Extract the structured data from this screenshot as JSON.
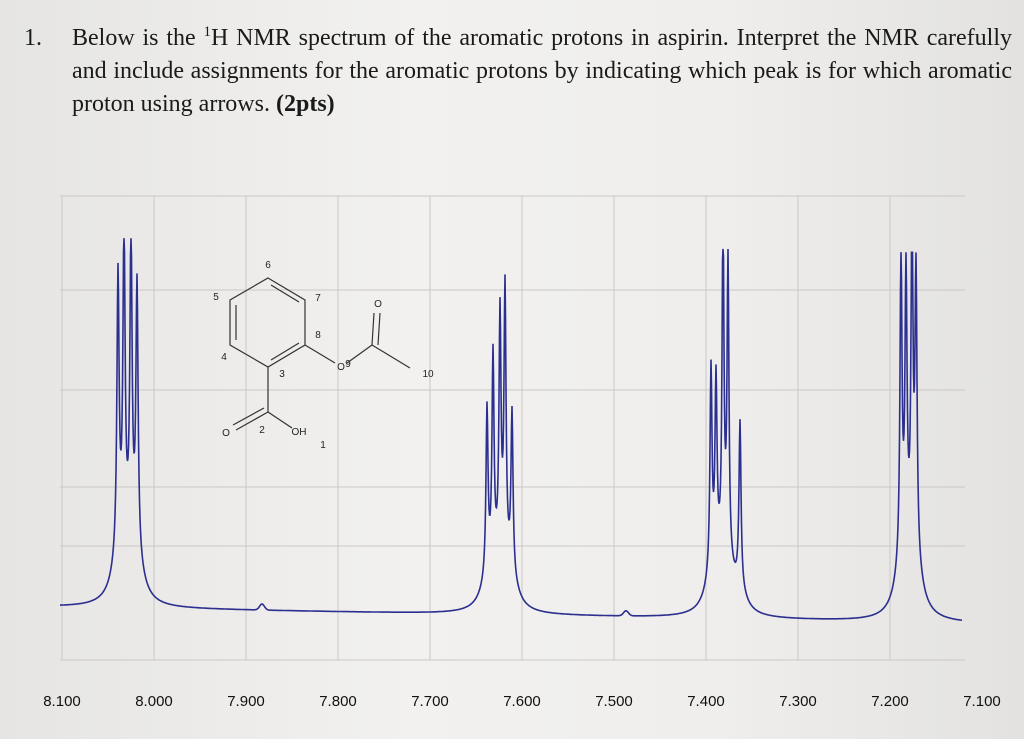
{
  "question": {
    "number": "1.",
    "text_before": "Below is the ",
    "superscript": "1",
    "text_after": "H NMR spectrum of the aromatic protons in aspirin. Interpret the NMR carefully and include assignments for the aromatic protons by indicating which peak is for which aromatic proton using arrows.",
    "points": "(2pts)"
  },
  "spectrum": {
    "xlim": [
      8.1,
      7.1
    ],
    "xticks": [
      {
        "value": 8.1,
        "label": "8.100"
      },
      {
        "value": 8.0,
        "label": "8.000"
      },
      {
        "value": 7.9,
        "label": "7.900"
      },
      {
        "value": 7.8,
        "label": "7.800"
      },
      {
        "value": 7.7,
        "label": "7.700"
      },
      {
        "value": 7.6,
        "label": "7.600"
      },
      {
        "value": 7.5,
        "label": "7.500"
      },
      {
        "value": 7.4,
        "label": "7.400"
      },
      {
        "value": 7.3,
        "label": "7.300"
      },
      {
        "value": 7.2,
        "label": "7.200"
      },
      {
        "value": 7.1,
        "label": "7.100"
      }
    ]
  },
  "structure": {
    "labels": [
      "6",
      "5",
      "7",
      "O",
      "8",
      "4",
      "3",
      "O",
      "9",
      "10",
      "O",
      "2",
      "OH",
      "1"
    ]
  }
}
